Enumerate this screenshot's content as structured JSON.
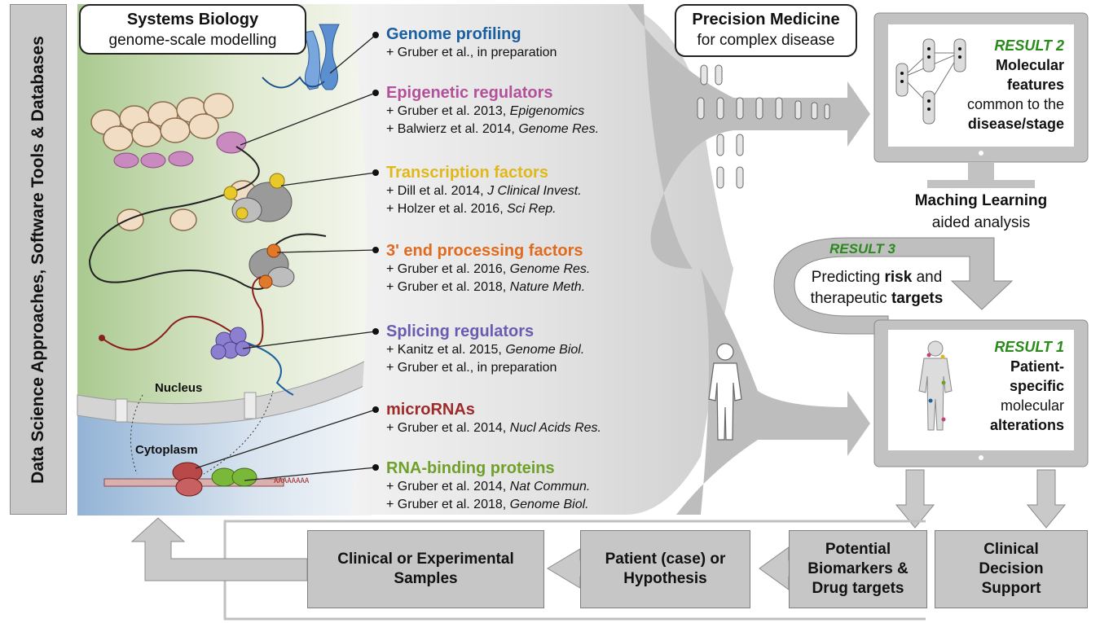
{
  "side_label": "Data Science Approaches, Software Tools & Databases",
  "systems_biology": {
    "title": "Systems Biology",
    "subtitle": "genome-scale modelling"
  },
  "precision_medicine": {
    "title": "Precision Medicine",
    "subtitle": "for complex disease"
  },
  "cell_labels": {
    "nucleus": "Nucleus",
    "cytoplasm": "Cytoplasm",
    "poly_a": "AAAAAAAA"
  },
  "regulators": [
    {
      "name": "Genome profiling",
      "color": "#1a5fa0",
      "refs": [
        {
          "pre": "+ Gruber et al., in preparation",
          "it": ""
        }
      ]
    },
    {
      "name": "Epigenetic regulators",
      "color": "#b3509a",
      "refs": [
        {
          "pre": "+ Gruber et al. 2013, ",
          "it": "Epigenomics"
        },
        {
          "pre": "+ Balwierz et al. 2014, ",
          "it": "Genome Res."
        }
      ]
    },
    {
      "name": "Transcription factors",
      "color": "#e0b81a",
      "refs": [
        {
          "pre": "+ Dill et al. 2014, ",
          "it": "J Clinical Invest."
        },
        {
          "pre": "+ Holzer et al. 2016, ",
          "it": "Sci Rep."
        }
      ]
    },
    {
      "name": "3' end processing factors",
      "color": "#e06a1e",
      "refs": [
        {
          "pre": "+ Gruber et al. 2016, ",
          "it": "Genome Res."
        },
        {
          "pre": "+ Gruber et al. 2018, ",
          "it": "Nature Meth."
        }
      ]
    },
    {
      "name": "Splicing regulators",
      "color": "#6b5bb0",
      "refs": [
        {
          "pre": "+ Kanitz et al. 2015, ",
          "it": "Genome Biol."
        },
        {
          "pre": "+ Gruber et al., in preparation",
          "it": ""
        }
      ]
    },
    {
      "name": "microRNAs",
      "color": "#9e2a2a",
      "refs": [
        {
          "pre": "+ Gruber et al. 2014, ",
          "it": "Nucl Acids Res."
        }
      ]
    },
    {
      "name": "RNA-binding proteins",
      "color": "#6fa02a",
      "refs": [
        {
          "pre": "+ Gruber et al. 2014, ",
          "it": "Nat Commun."
        },
        {
          "pre": "+ Gruber et al. 2018, ",
          "it": "Genome Biol."
        }
      ]
    }
  ],
  "result2": {
    "head": "RESULT 2",
    "l1": "Molecular",
    "l2": "features",
    "l3": "common to the",
    "l4": "disease/stage"
  },
  "machine_learning": {
    "l1": "Maching Learning",
    "l2": "aided analysis"
  },
  "result3": {
    "head": "RESULT 3",
    "l1a": "Predicting ",
    "l1b": "risk",
    "l1c": " and",
    "l2a": "therapeutic ",
    "l2b": "targets"
  },
  "result1": {
    "head": "RESULT 1",
    "l1": "Patient-",
    "l2": "specific",
    "l3": "molecular",
    "l4": "alterations"
  },
  "flow": {
    "samples": "Clinical or Experimental\nSamples",
    "hypothesis": "Patient (case) or\nHypothesis",
    "biomarkers": "Potential\nBiomarkers &\nDrug targets",
    "decision": "Clinical\nDecision\nSupport"
  },
  "colors": {
    "panel_gray": "#c9c9c9",
    "result_green": "#2a8a1c"
  }
}
